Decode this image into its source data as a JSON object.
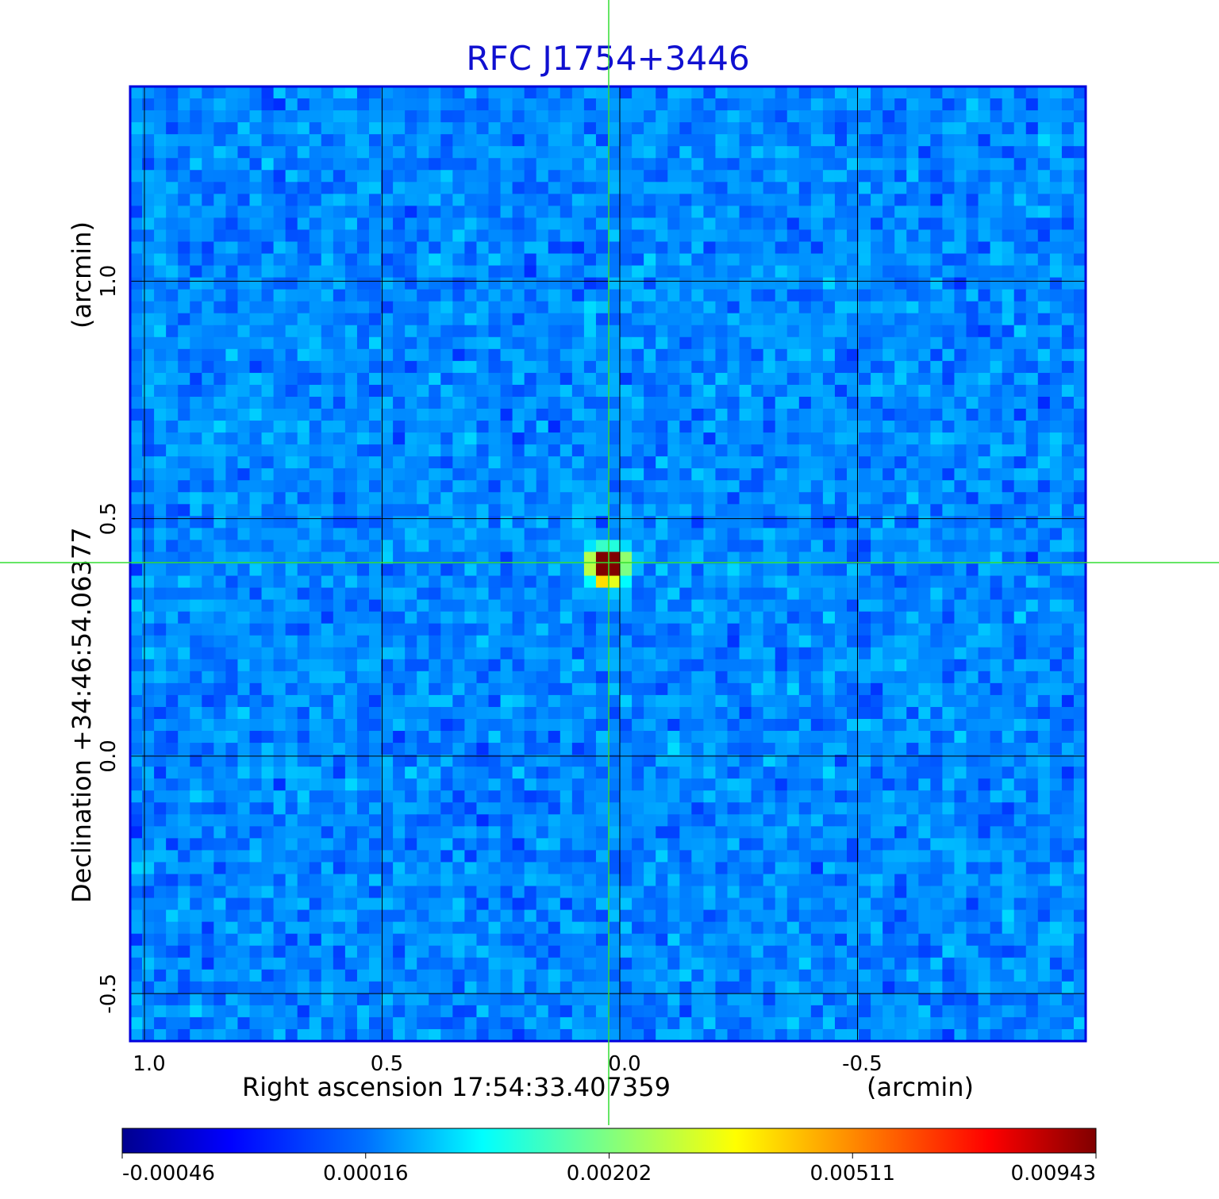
{
  "chart_data": {
    "type": "heatmap",
    "title": "RFC J1754+3446",
    "xlabel": "Right ascension  17:54:33.407359",
    "xlabel_unit": "(arcmin)",
    "ylabel": "Declination  +34:46:54.06377",
    "ylabel_unit": "(arcmin)",
    "x_ticks": [
      "1.0",
      "0.5",
      "0.0",
      "-0.5"
    ],
    "x_tick_values": [
      1.0,
      0.5,
      0.0,
      -0.5
    ],
    "y_ticks": [
      "1.0",
      "0.5",
      "0.0",
      "-0.5"
    ],
    "y_tick_values": [
      1.0,
      0.5,
      0.0,
      -0.5
    ],
    "xlim": [
      1.03,
      -0.98
    ],
    "ylim": [
      -0.6,
      1.41
    ],
    "grid": true,
    "grid_color": "#000000",
    "crosshair_color": "#33dd33",
    "frame_color": "#0000dd",
    "source_peak": {
      "x": 0.026,
      "y": 0.4,
      "value": 0.00943
    },
    "background_level": 0.00016,
    "colorscale": "jet",
    "colorbar_ticks": [
      "-0.00046",
      "0.00016",
      "0.00202",
      "0.00511",
      "0.00943"
    ],
    "colorbar_tick_values": [
      -0.00046,
      0.00016,
      0.00202,
      0.00511,
      0.00943
    ]
  }
}
